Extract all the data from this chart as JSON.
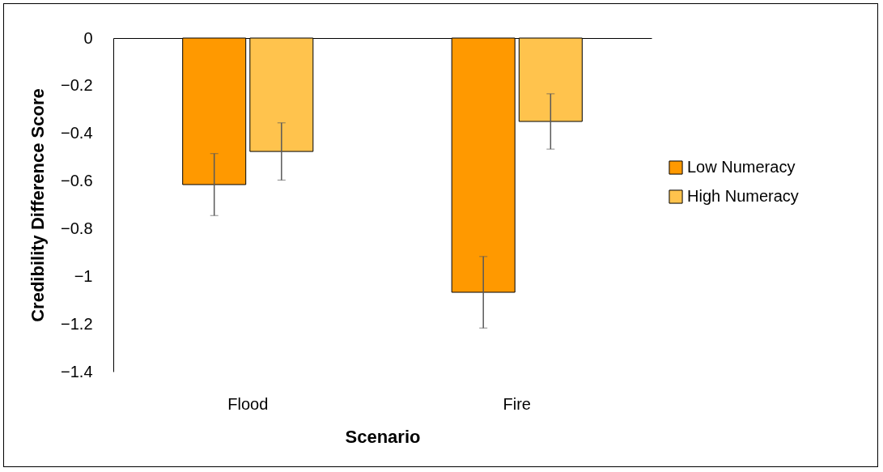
{
  "chart_data": {
    "type": "bar",
    "xlabel": "Scenario",
    "ylabel": "Credibility Difference Score",
    "categories": [
      "Flood",
      "Fire"
    ],
    "series": [
      {
        "name": "Low Numeracy",
        "color": "#ff9900",
        "values": [
          -0.615,
          -1.067
        ],
        "errors": [
          0.13,
          0.15
        ]
      },
      {
        "name": "High Numeracy",
        "color": "#ffc34d",
        "values": [
          -0.476,
          -0.35
        ],
        "errors": [
          0.12,
          0.116
        ]
      }
    ],
    "ylim": [
      -1.4,
      0
    ],
    "yticks": [
      -1.4,
      -1.2,
      -1,
      -0.8,
      -0.6,
      -0.4,
      -0.2,
      0
    ],
    "grid": false,
    "legend": "right"
  }
}
